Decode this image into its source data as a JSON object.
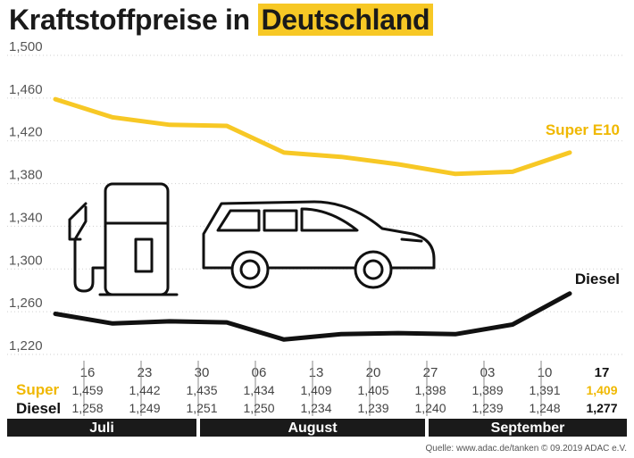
{
  "title": {
    "part1": "Kraftstoffpreise in",
    "part2": "Deutschland"
  },
  "source": "Quelle: www.adac.de/tanken  © 09.2019  ADAC e.V.",
  "colors": {
    "super": "#f7c825",
    "diesel": "#111111",
    "highlight": "#f7c825",
    "month_bar": "#1a1a1a"
  },
  "chart_data": {
    "type": "line",
    "title": "Kraftstoffpreise in Deutschland",
    "categories": [
      "16",
      "23",
      "30",
      "06",
      "13",
      "20",
      "27",
      "03",
      "10",
      "17"
    ],
    "months": [
      {
        "label": "Juli",
        "start": 0,
        "end": 2
      },
      {
        "label": "August",
        "start": 3,
        "end": 6
      },
      {
        "label": "September",
        "start": 7,
        "end": 9
      }
    ],
    "ylim": [
      1.22,
      1.5
    ],
    "yticks": [
      "1,500",
      "1,460",
      "1,420",
      "1,380",
      "1,340",
      "1,300",
      "1,260",
      "1,220"
    ],
    "ytick_values": [
      1.5,
      1.46,
      1.42,
      1.38,
      1.34,
      1.3,
      1.26,
      1.22
    ],
    "grid": true,
    "series": [
      {
        "name": "Super E10",
        "row_label": "Super",
        "values": [
          1.459,
          1.442,
          1.435,
          1.434,
          1.409,
          1.405,
          1.398,
          1.389,
          1.391,
          1.409
        ],
        "labels": [
          "1,459",
          "1,442",
          "1,435",
          "1,434",
          "1,409",
          "1,405",
          "1,398",
          "1,389",
          "1,391",
          "1,409"
        ]
      },
      {
        "name": "Diesel",
        "row_label": "Diesel",
        "values": [
          1.258,
          1.249,
          1.251,
          1.25,
          1.234,
          1.239,
          1.24,
          1.239,
          1.248,
          1.277
        ],
        "labels": [
          "1,258",
          "1,249",
          "1,251",
          "1,250",
          "1,234",
          "1,239",
          "1,240",
          "1,239",
          "1,248",
          "1,277"
        ]
      }
    ]
  }
}
